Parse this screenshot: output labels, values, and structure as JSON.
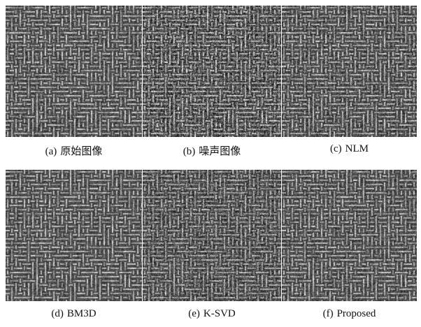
{
  "panels": [
    {
      "tag": "(a)",
      "label": "原始图像"
    },
    {
      "tag": "(b)",
      "label": "噪声图像"
    },
    {
      "tag": "(c)",
      "label": "NLM"
    },
    {
      "tag": "(d)",
      "label": "BM3D"
    },
    {
      "tag": "(e)",
      "label": "K-SVD"
    },
    {
      "tag": "(f)",
      "label": "Proposed"
    }
  ]
}
